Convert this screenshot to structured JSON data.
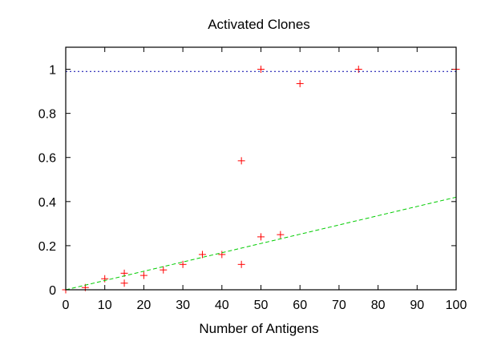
{
  "chart_data": {
    "type": "scatter",
    "title": "Activated Clones",
    "xlabel": "Number of Antigens",
    "ylabel": "",
    "xlim": [
      0,
      100
    ],
    "ylim": [
      0,
      1.1
    ],
    "xticks": [
      0,
      10,
      20,
      30,
      40,
      50,
      60,
      70,
      80,
      90,
      100
    ],
    "yticks": [
      0,
      0.2,
      0.4,
      0.6,
      0.8,
      1
    ],
    "ytick_labels": [
      "0",
      "0.2",
      "0.4",
      "0.6",
      "0.8",
      "1"
    ],
    "grid": false,
    "series": [
      {
        "marker": "+",
        "color": "#ff0000",
        "points": [
          [
            0,
            0.0
          ],
          [
            5,
            0.01
          ],
          [
            10,
            0.05
          ],
          [
            15,
            0.03
          ],
          [
            15,
            0.075
          ],
          [
            20,
            0.065
          ],
          [
            25,
            0.09
          ],
          [
            30,
            0.115
          ],
          [
            35,
            0.16
          ],
          [
            40,
            0.16
          ],
          [
            45,
            0.115
          ],
          [
            45,
            0.585
          ],
          [
            50,
            0.24
          ],
          [
            50,
            1.0
          ],
          [
            55,
            0.25
          ],
          [
            60,
            0.935
          ],
          [
            75,
            1.0
          ],
          [
            100,
            1.0
          ]
        ]
      },
      {
        "line": "dashed",
        "color": "#00cc00",
        "points": [
          [
            0,
            0.0
          ],
          [
            100,
            0.42
          ]
        ]
      },
      {
        "line": "dotted",
        "color": "#0000aa",
        "points": [
          [
            0,
            0.99
          ],
          [
            100,
            0.99
          ]
        ]
      }
    ]
  }
}
